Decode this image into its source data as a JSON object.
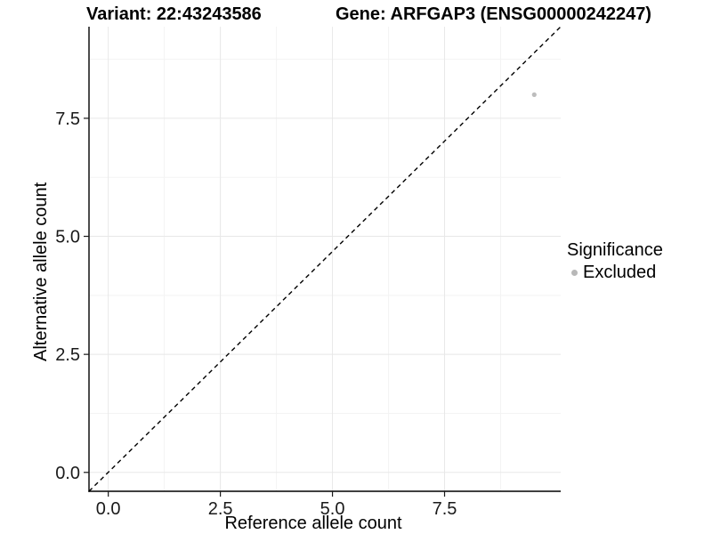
{
  "header": {
    "variant_title": "Variant: 22:43243586",
    "gene_title": "Gene: ARFGAP3 (ENSG00000242247)"
  },
  "chart_data": {
    "type": "scatter",
    "titles": [
      "Variant: 22:43243586",
      "Gene: ARFGAP3 (ENSG00000242247)"
    ],
    "xlabel": "Reference allele count",
    "ylabel": "Alternative allele count",
    "xlim": [
      -0.43,
      10.09
    ],
    "ylim": [
      -0.4,
      9.44
    ],
    "x_ticks": [
      0,
      2.5,
      5,
      7.5
    ],
    "y_ticks": [
      0,
      2.5,
      5,
      7.5
    ],
    "x_tick_labels": [
      "0.0",
      "2.5",
      "5.0",
      "7.5"
    ],
    "y_tick_labels": [
      "0.0",
      "2.5",
      "5.0",
      "7.5"
    ],
    "x_minor": [
      1.25,
      3.75,
      6.25,
      8.75
    ],
    "y_minor": [
      1.25,
      3.75,
      6.25,
      8.75
    ],
    "grid": true,
    "legend_position": "right",
    "reference_line": {
      "type": "identity",
      "style": "dashed",
      "color": "#000000"
    },
    "series": [
      {
        "name": "Excluded",
        "color": "#bdbdbd",
        "points": [
          [
            9.5,
            8
          ]
        ]
      }
    ],
    "legend": {
      "title": "Significance",
      "entries": [
        {
          "label": "Excluded",
          "color": "#b8b8b8"
        }
      ]
    },
    "colors": {
      "grid_major": "#e8e8e8",
      "grid_minor": "#f3f3f3",
      "axis": "#000000",
      "tick_text": "#1a1a1a"
    }
  }
}
